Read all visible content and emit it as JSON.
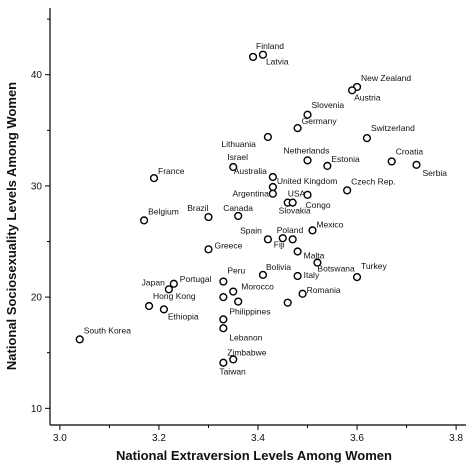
{
  "chart_data": {
    "type": "scatter",
    "xlabel": "National Extraversion Levels Among Women",
    "ylabel": "National Sociosexuality Levels Among Women",
    "xlim": [
      2.98,
      3.82
    ],
    "ylim": [
      8.5,
      46
    ],
    "xticks": [
      3.0,
      3.2,
      3.4,
      3.6,
      3.8
    ],
    "xtick_labels": [
      "3.0",
      "3.2",
      "3.4",
      "3.6",
      "3.8"
    ],
    "yticks": [
      10,
      20,
      30,
      40
    ],
    "ytick_labels": [
      "10",
      "20",
      "30",
      "40"
    ],
    "grid": false,
    "legend": "none",
    "marker_color": "#000000",
    "points": [
      {
        "label": "Finland",
        "x": 3.39,
        "y": 41.6,
        "label_pos": "finland"
      },
      {
        "label": "Latvia",
        "x": 3.41,
        "y": 41.8,
        "label_pos": "latvia"
      },
      {
        "label": "New Zealand",
        "x": 3.6,
        "y": 38.9,
        "label_pos": "nz"
      },
      {
        "label": "Austria",
        "x": 3.59,
        "y": 38.6,
        "label_pos": "austria"
      },
      {
        "label": "Slovenia",
        "x": 3.5,
        "y": 36.4,
        "label_pos": "slovenia"
      },
      {
        "label": "Germany",
        "x": 3.48,
        "y": 35.2,
        "label_pos": "germany"
      },
      {
        "label": "Lithuania",
        "x": 3.42,
        "y": 34.4,
        "label_pos": "lithuania"
      },
      {
        "label": "Switzerland",
        "x": 3.62,
        "y": 34.3,
        "label_pos": "switzerland"
      },
      {
        "label": "Croatia",
        "x": 3.67,
        "y": 32.2,
        "label_pos": "croatia"
      },
      {
        "label": "Serbia",
        "x": 3.72,
        "y": 31.9,
        "label_pos": "serbia"
      },
      {
        "label": "Netherlands",
        "x": 3.5,
        "y": 32.3,
        "label_pos": "netherlands"
      },
      {
        "label": "Estonia",
        "x": 3.54,
        "y": 31.8,
        "label_pos": "estonia"
      },
      {
        "label": "Israel",
        "x": 3.35,
        "y": 31.7,
        "label_pos": "israel"
      },
      {
        "label": "France",
        "x": 3.19,
        "y": 30.7,
        "label_pos": "france"
      },
      {
        "label": "Australia",
        "x": 3.43,
        "y": 30.8,
        "label_pos": "australia"
      },
      {
        "label": "United Kingdom",
        "x": 3.43,
        "y": 29.9,
        "label_pos": "uk"
      },
      {
        "label": "Czech Rep.",
        "x": 3.58,
        "y": 29.6,
        "label_pos": "czech"
      },
      {
        "label": "Argentina",
        "x": 3.43,
        "y": 29.3,
        "label_pos": "argentina"
      },
      {
        "label": "Congo",
        "x": 3.5,
        "y": 29.2,
        "label_pos": "congo"
      },
      {
        "label": "USA",
        "x": 3.46,
        "y": 28.5,
        "label_pos": "usa"
      },
      {
        "label": "Slovakia",
        "x": 3.47,
        "y": 28.5,
        "label_pos": "slovakia"
      },
      {
        "label": "Belgium",
        "x": 3.17,
        "y": 26.9,
        "label_pos": "belgium"
      },
      {
        "label": "Brazil",
        "x": 3.3,
        "y": 27.2,
        "label_pos": "brazil"
      },
      {
        "label": "Canada",
        "x": 3.36,
        "y": 27.3,
        "label_pos": "canada"
      },
      {
        "label": "Mexico",
        "x": 3.51,
        "y": 26.0,
        "label_pos": "mexico"
      },
      {
        "label": "Spain",
        "x": 3.42,
        "y": 25.2,
        "label_pos": "spain"
      },
      {
        "label": "Poland",
        "x": 3.45,
        "y": 25.3,
        "label_pos": "poland"
      },
      {
        "label": "Fiji",
        "x": 3.47,
        "y": 25.2,
        "label_pos": "fiji"
      },
      {
        "label": "Greece",
        "x": 3.3,
        "y": 24.3,
        "label_pos": "greece"
      },
      {
        "label": "Malta",
        "x": 3.48,
        "y": 24.1,
        "label_pos": "malta"
      },
      {
        "label": "Botswana",
        "x": 3.52,
        "y": 23.1,
        "label_pos": "botswana"
      },
      {
        "label": "Bolivia",
        "x": 3.41,
        "y": 22.0,
        "label_pos": "bolivia"
      },
      {
        "label": "Italy",
        "x": 3.48,
        "y": 21.9,
        "label_pos": "italy"
      },
      {
        "label": "Turkey",
        "x": 3.6,
        "y": 21.8,
        "label_pos": "turkey"
      },
      {
        "label": "Portugal",
        "x": 3.23,
        "y": 21.2,
        "label_pos": "portugal"
      },
      {
        "label": "Peru",
        "x": 3.33,
        "y": 21.4,
        "label_pos": "peru"
      },
      {
        "label": "Japan",
        "x": 3.22,
        "y": 20.7,
        "label_pos": "japan"
      },
      {
        "label": "Morocco",
        "x": 3.35,
        "y": 20.5,
        "label_pos": "morocco"
      },
      {
        "label": "Romania",
        "x": 3.49,
        "y": 20.3,
        "label_pos": "romania"
      },
      {
        "label": "Hong Kong",
        "x": 3.18,
        "y": 19.2,
        "label_pos": "hongkong"
      },
      {
        "label": "Ethiopia",
        "x": 3.21,
        "y": 18.9,
        "label_pos": "ethiopia"
      },
      {
        "label": "Philippines",
        "x": 3.33,
        "y": 18.0,
        "label_pos": "philippines"
      },
      {
        "label": "Lebanon",
        "x": 3.33,
        "y": 17.2,
        "label_pos": "lebanon"
      },
      {
        "label": "South Korea",
        "x": 3.04,
        "y": 16.2,
        "label_pos": "southkorea"
      },
      {
        "label": "Zimbabwe",
        "x": 3.35,
        "y": 14.4,
        "label_pos": "zimbabwe"
      },
      {
        "label": "Taiwan",
        "x": 3.33,
        "y": 14.1,
        "label_pos": "taiwan"
      },
      {
        "label": "",
        "x": 3.36,
        "y": 19.6,
        "label_pos": "none"
      },
      {
        "label": "",
        "x": 3.46,
        "y": 19.5,
        "label_pos": "none"
      },
      {
        "label": "",
        "x": 3.33,
        "y": 20.0,
        "label_pos": "none"
      }
    ]
  }
}
